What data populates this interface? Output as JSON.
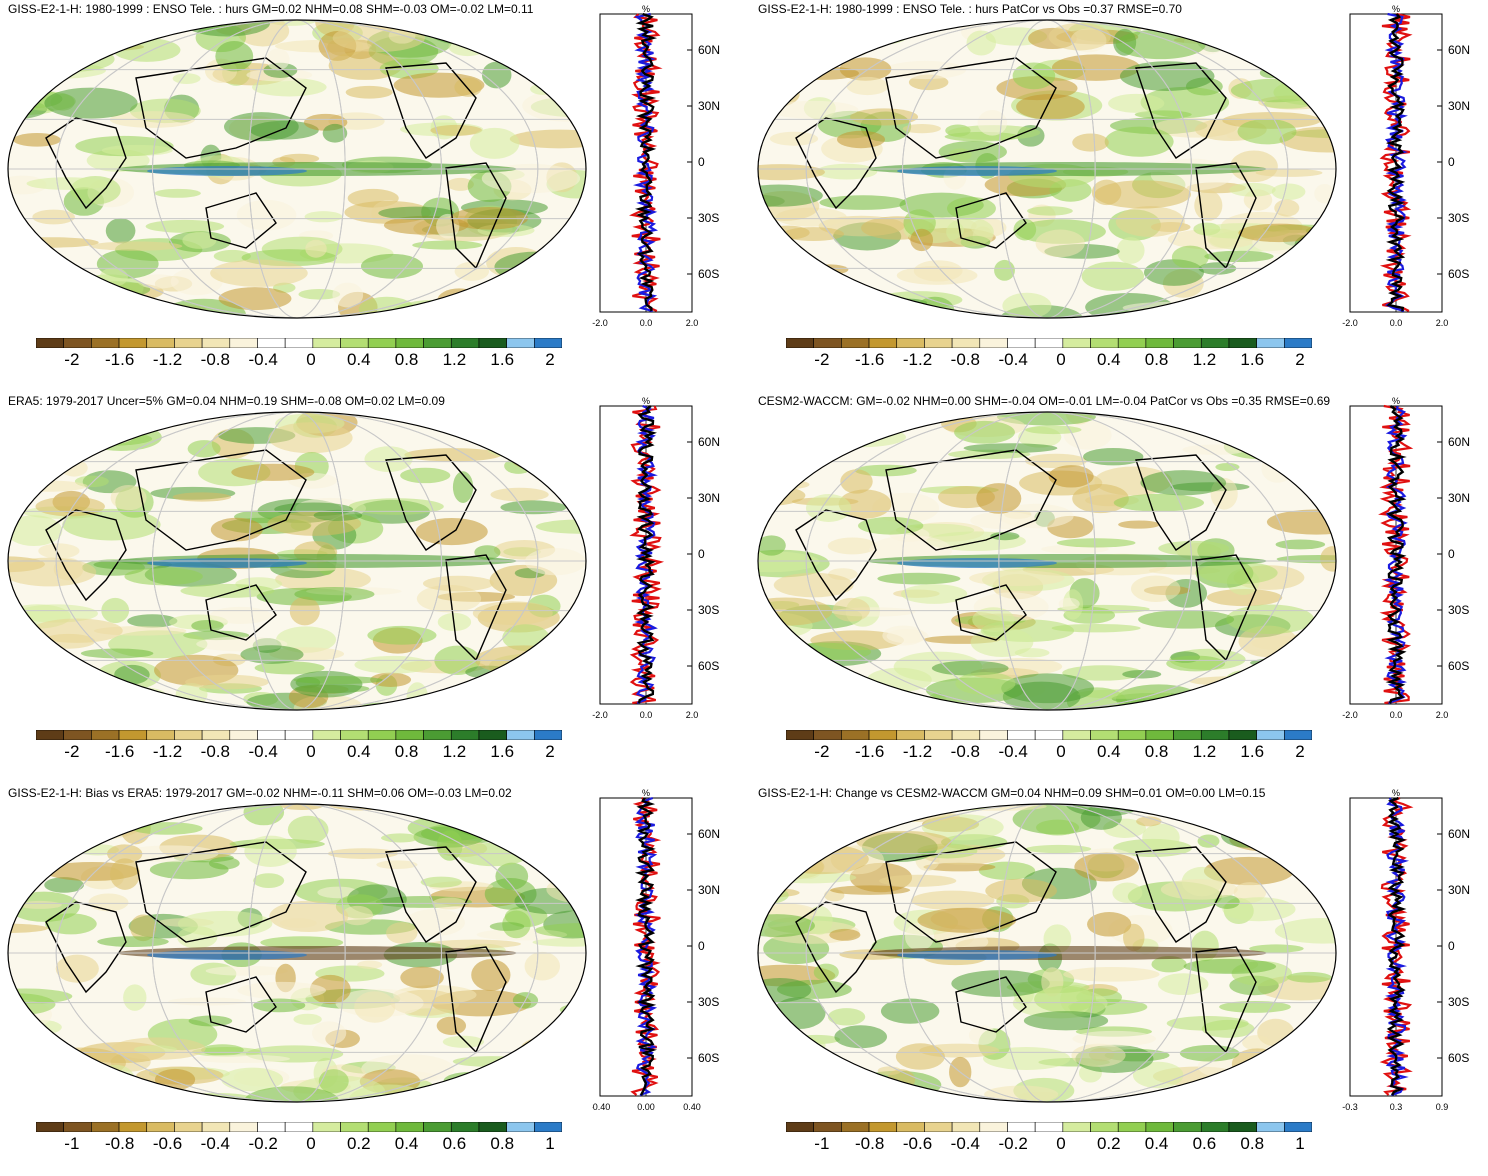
{
  "palette": [
    "#5e3c17",
    "#7e5522",
    "#9b7126",
    "#c3982f",
    "#d9bb63",
    "#e8d38f",
    "#f2e6b6",
    "#faf3dc",
    "#ffffff",
    "#ffffff",
    "#d5ec9f",
    "#b3de73",
    "#92cf52",
    "#6fb93c",
    "#4b9c33",
    "#2c7d2a",
    "#1a5c1e",
    "#8cc6ee",
    "#2b7bc7"
  ],
  "panels": [
    {
      "title": "GISS-E2-1-H: 1980-1999 : ENSO Tele. : hurs GM=0.02 NHM=0.08 SHM=-0.03 OM=-0.02 LM=0.11",
      "colorbar_labels": [
        "-2",
        "-1.6",
        "-1.2",
        "-0.8",
        "-0.4",
        "0",
        "0.4",
        "0.8",
        "1.2",
        "1.6",
        "2"
      ],
      "profile": {
        "unit": "%",
        "xticks": [
          "-2.0",
          "0.0",
          "2.0"
        ],
        "lat_labels": [
          "60N",
          "30N",
          "0",
          "30S",
          "60S"
        ]
      }
    },
    {
      "title": "GISS-E2-1-H: 1980-1999 : ENSO Tele. : hurs PatCor vs Obs =0.37 RMSE=0.70",
      "colorbar_labels": [
        "-2",
        "-1.6",
        "-1.2",
        "-0.8",
        "-0.4",
        "0",
        "0.4",
        "0.8",
        "1.2",
        "1.6",
        "2"
      ],
      "profile": {
        "unit": "%",
        "xticks": [
          "-2.0",
          "0.0",
          "2.0"
        ],
        "lat_labels": [
          "60N",
          "30N",
          "0",
          "30S",
          "60S"
        ]
      }
    },
    {
      "title": "ERA5: 1979-2017 Uncer=5% GM=0.04 NHM=0.19 SHM=-0.08 OM=0.02 LM=0.09",
      "colorbar_labels": [
        "-2",
        "-1.6",
        "-1.2",
        "-0.8",
        "-0.4",
        "0",
        "0.4",
        "0.8",
        "1.2",
        "1.6",
        "2"
      ],
      "profile": {
        "unit": "%",
        "xticks": [
          "-2.0",
          "0.0",
          "2.0"
        ],
        "lat_labels": [
          "60N",
          "30N",
          "0",
          "30S",
          "60S"
        ]
      }
    },
    {
      "title": "CESM2-WACCM: GM=-0.02 NHM=0.00 SHM=-0.04 OM=-0.01 LM=-0.04 PatCor vs Obs =0.35 RMSE=0.69",
      "colorbar_labels": [
        "-2",
        "-1.6",
        "-1.2",
        "-0.8",
        "-0.4",
        "0",
        "0.4",
        "0.8",
        "1.2",
        "1.6",
        "2"
      ],
      "profile": {
        "unit": "%",
        "xticks": [
          "-2.0",
          "0.0",
          "2.0"
        ],
        "lat_labels": [
          "60N",
          "30N",
          "0",
          "30S",
          "60S"
        ]
      }
    },
    {
      "title": "GISS-E2-1-H: Bias vs ERA5: 1979-2017 GM=-0.02 NHM=-0.11 SHM=0.06 OM=-0.03 LM=0.02",
      "colorbar_labels": [
        "-1",
        "-0.8",
        "-0.6",
        "-0.4",
        "-0.2",
        "0",
        "0.2",
        "0.4",
        "0.6",
        "0.8",
        "1"
      ],
      "profile": {
        "unit": "%",
        "xticks": [
          "-0.40",
          "0.00",
          "0.40"
        ],
        "lat_labels": [
          "60N",
          "30N",
          "0",
          "30S",
          "60S"
        ]
      }
    },
    {
      "title": "GISS-E2-1-H: Change vs CESM2-WACCM GM=0.04 NHM=0.09 SHM=0.01 OM=0.00 LM=0.15",
      "colorbar_labels": [
        "-1",
        "-0.8",
        "-0.6",
        "-0.4",
        "-0.2",
        "0",
        "0.2",
        "0.4",
        "0.6",
        "0.8",
        "1"
      ],
      "profile": {
        "unit": "%",
        "xticks": [
          "-0.3",
          "0.3",
          "0.9"
        ],
        "lat_labels": [
          "60N",
          "30N",
          "0",
          "30S",
          "60S"
        ]
      }
    }
  ]
}
